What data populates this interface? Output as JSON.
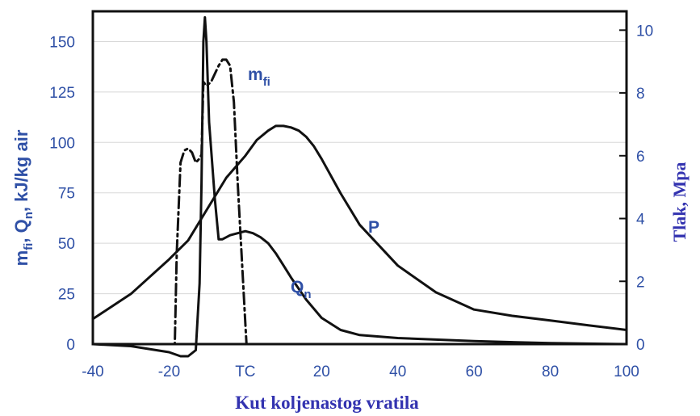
{
  "chart_data": {
    "type": "line",
    "title": "",
    "xlabel": "Kut koljenastog vratila",
    "ylabel_left": "mfi, Qn, kJ/kg air",
    "ylabel_left_parts": [
      "m",
      "fi",
      ", Q",
      "n",
      ", kJ/kg air"
    ],
    "ylabel_right": "Tlak, Mpa",
    "xlim": [
      -40,
      100
    ],
    "ylim_left": [
      0,
      165
    ],
    "ylim_right": [
      0,
      10.6
    ],
    "x_ticks": [
      {
        "value": -40,
        "label": "-40"
      },
      {
        "value": -20,
        "label": "-20"
      },
      {
        "value": 0,
        "label": "TC"
      },
      {
        "value": 20,
        "label": "20"
      },
      {
        "value": 40,
        "label": "40"
      },
      {
        "value": 60,
        "label": "60"
      },
      {
        "value": 80,
        "label": "80"
      },
      {
        "value": 100,
        "label": "100"
      }
    ],
    "y_ticks_left": [
      0,
      25,
      50,
      75,
      100,
      125,
      150
    ],
    "y_ticks_right": [
      0,
      2,
      4,
      6,
      8,
      10
    ],
    "grid": "horizontal",
    "series": [
      {
        "name": "mfi",
        "label_main": "m",
        "label_sub": "fi",
        "axis": "left",
        "style": "dash-dot",
        "x": [
          -40,
          -18.5,
          -18,
          -17,
          -16,
          -15,
          -14,
          -13,
          -12,
          -11.5,
          -11,
          -10.2,
          -9,
          -7,
          -6,
          -5,
          -4,
          -3,
          -2,
          0,
          0.3,
          2
        ],
        "y": [
          0,
          0,
          45,
          90,
          96,
          97,
          95,
          90,
          92,
          94,
          130,
          128,
          130,
          138,
          141,
          141,
          138,
          120,
          80,
          10,
          0,
          0
        ]
      },
      {
        "name": "Qn",
        "label_main": "Q",
        "label_sub": "n",
        "axis": "left",
        "style": "solid",
        "x": [
          -40,
          -30,
          -20,
          -17,
          -15,
          -13,
          -12,
          -11.5,
          -11,
          -10.6,
          -10.2,
          -9.5,
          -8,
          -7,
          -6,
          -5,
          -4,
          -2,
          0,
          2,
          4,
          6,
          8,
          10,
          12,
          16,
          20,
          25,
          30,
          40,
          60,
          80,
          100
        ],
        "y": [
          0,
          -1,
          -4,
          -6,
          -6,
          -3,
          30,
          80,
          150,
          162,
          150,
          110,
          72,
          52,
          52,
          53,
          54,
          55,
          56,
          55,
          53,
          50,
          45,
          39,
          33,
          22,
          13,
          7,
          4.5,
          3,
          1.5,
          0.5,
          0
        ]
      },
      {
        "name": "P",
        "label_main": "P",
        "label_sub": "",
        "axis": "right",
        "style": "solid",
        "x": [
          -40,
          -30,
          -20,
          -15,
          -10,
          -5,
          0,
          3,
          6,
          8,
          10,
          12,
          14,
          16,
          18,
          20,
          25,
          30,
          40,
          50,
          60,
          70,
          80,
          90,
          100
        ],
        "y": [
          0.8,
          1.6,
          2.7,
          3.3,
          4.3,
          5.3,
          6.0,
          6.5,
          6.8,
          6.95,
          6.95,
          6.9,
          6.8,
          6.6,
          6.3,
          5.9,
          4.8,
          3.8,
          2.5,
          1.65,
          1.1,
          0.9,
          0.75,
          0.6,
          0.45
        ]
      }
    ]
  }
}
